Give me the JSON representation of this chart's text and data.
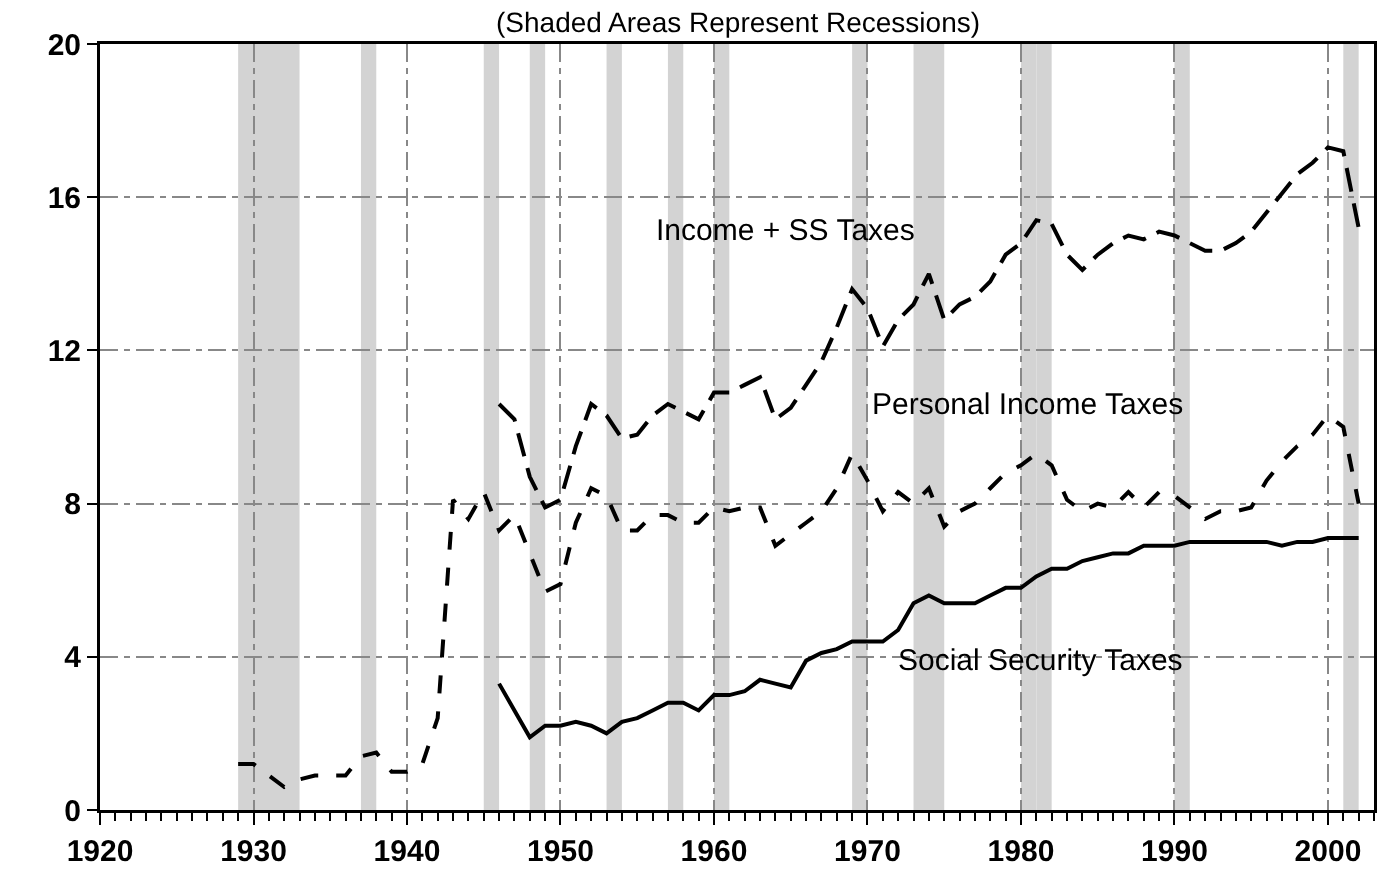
{
  "chart_data": {
    "type": "line",
    "subtitle": "(Shaded Areas Represent Recessions)",
    "xlim": [
      1920,
      2003
    ],
    "xticks": [
      1920,
      1930,
      1940,
      1950,
      1960,
      1970,
      1980,
      1990,
      2000
    ],
    "ylim": [
      0,
      20
    ],
    "yticks": [
      0,
      4,
      8,
      12,
      16,
      20
    ],
    "grid": true,
    "legend": false,
    "marker": "none",
    "series": [
      {
        "name": "Income + SS Taxes",
        "color": "#000000",
        "line_style": "dashed",
        "x": [
          1946,
          1947,
          1948,
          1949,
          1950,
          1951,
          1952,
          1953,
          1954,
          1955,
          1956,
          1957,
          1958,
          1959,
          1960,
          1961,
          1962,
          1963,
          1964,
          1965,
          1966,
          1967,
          1968,
          1969,
          1970,
          1971,
          1972,
          1973,
          1974,
          1975,
          1976,
          1977,
          1978,
          1979,
          1980,
          1981,
          1982,
          1983,
          1984,
          1985,
          1986,
          1987,
          1988,
          1989,
          1990,
          1991,
          1992,
          1993,
          1994,
          1995,
          1996,
          1997,
          1998,
          1999,
          2000,
          2001,
          2002
        ],
        "values": [
          10.6,
          10.2,
          8.7,
          7.9,
          8.1,
          9.5,
          10.6,
          10.3,
          9.7,
          9.8,
          10.3,
          10.6,
          10.4,
          10.2,
          10.9,
          10.9,
          11.1,
          11.3,
          10.2,
          10.5,
          11.1,
          11.7,
          12.6,
          13.6,
          13.1,
          12.1,
          12.8,
          13.2,
          14.0,
          12.8,
          13.2,
          13.4,
          13.8,
          14.5,
          14.8,
          15.4,
          15.3,
          14.5,
          14.1,
          14.5,
          14.8,
          15.0,
          14.9,
          15.1,
          15.0,
          14.8,
          14.6,
          14.6,
          14.8,
          15.1,
          15.6,
          16.1,
          16.6,
          16.9,
          17.3,
          17.2,
          15.2
        ]
      },
      {
        "name": "Personal Income Taxes",
        "color": "#000000",
        "line_style": "dashed",
        "x": [
          1929,
          1930,
          1931,
          1932,
          1933,
          1934,
          1935,
          1936,
          1937,
          1938,
          1939,
          1940,
          1941,
          1942,
          1943,
          1944,
          1945,
          1946,
          1947,
          1948,
          1949,
          1950,
          1951,
          1952,
          1953,
          1954,
          1955,
          1956,
          1957,
          1958,
          1959,
          1960,
          1961,
          1962,
          1963,
          1964,
          1965,
          1966,
          1967,
          1968,
          1969,
          1970,
          1971,
          1972,
          1973,
          1974,
          1975,
          1976,
          1977,
          1978,
          1979,
          1980,
          1981,
          1982,
          1983,
          1984,
          1985,
          1986,
          1987,
          1988,
          1989,
          1990,
          1991,
          1992,
          1993,
          1994,
          1995,
          1996,
          1997,
          1998,
          1999,
          2000,
          2001,
          2002
        ],
        "values": [
          1.2,
          1.2,
          0.9,
          0.6,
          0.8,
          0.9,
          0.9,
          0.9,
          1.4,
          1.5,
          1.0,
          1.0,
          1.2,
          2.4,
          8.1,
          7.6,
          8.3,
          7.3,
          7.7,
          6.7,
          5.7,
          5.9,
          7.5,
          8.4,
          8.2,
          7.3,
          7.3,
          7.7,
          7.7,
          7.5,
          7.5,
          7.9,
          7.8,
          7.9,
          7.9,
          6.9,
          7.2,
          7.5,
          7.8,
          8.4,
          9.3,
          8.6,
          7.8,
          8.3,
          8.0,
          8.4,
          7.4,
          7.8,
          8.0,
          8.4,
          8.8,
          9.0,
          9.3,
          9.0,
          8.1,
          7.8,
          8.0,
          7.9,
          8.3,
          7.9,
          8.3,
          8.2,
          7.9,
          7.6,
          7.8,
          7.8,
          7.9,
          8.6,
          9.1,
          9.5,
          9.8,
          10.3,
          10.0,
          8.0
        ]
      },
      {
        "name": "Social Security Taxes",
        "color": "#000000",
        "line_style": "solid",
        "x": [
          1946,
          1947,
          1948,
          1949,
          1950,
          1951,
          1952,
          1953,
          1954,
          1955,
          1956,
          1957,
          1958,
          1959,
          1960,
          1961,
          1962,
          1963,
          1964,
          1965,
          1966,
          1967,
          1968,
          1969,
          1970,
          1971,
          1972,
          1973,
          1974,
          1975,
          1976,
          1977,
          1978,
          1979,
          1980,
          1981,
          1982,
          1983,
          1984,
          1985,
          1986,
          1987,
          1988,
          1989,
          1990,
          1991,
          1992,
          1993,
          1994,
          1995,
          1996,
          1997,
          1998,
          1999,
          2000,
          2001,
          2002
        ],
        "values": [
          3.3,
          2.6,
          1.9,
          2.2,
          2.2,
          2.3,
          2.2,
          2.0,
          2.3,
          2.4,
          2.6,
          2.8,
          2.8,
          2.6,
          3.0,
          3.0,
          3.1,
          3.4,
          3.3,
          3.2,
          3.9,
          4.1,
          4.2,
          4.4,
          4.4,
          4.4,
          4.7,
          5.4,
          5.6,
          5.4,
          5.4,
          5.4,
          5.6,
          5.8,
          5.8,
          6.1,
          6.3,
          6.3,
          6.5,
          6.6,
          6.7,
          6.7,
          6.9,
          6.9,
          6.9,
          7.0,
          7.0,
          7.0,
          7.0,
          7.0,
          7.0,
          6.9,
          7.0,
          7.0,
          7.1,
          7.1,
          7.1
        ]
      }
    ],
    "bands": [
      {
        "axis": "x",
        "from": 1929,
        "to": 1933,
        "color": "#d3d3d3"
      },
      {
        "axis": "x",
        "from": 1937,
        "to": 1938,
        "color": "#d3d3d3"
      },
      {
        "axis": "x",
        "from": 1945,
        "to": 1946,
        "color": "#d3d3d3"
      },
      {
        "axis": "x",
        "from": 1948,
        "to": 1949,
        "color": "#d3d3d3"
      },
      {
        "axis": "x",
        "from": 1953,
        "to": 1954,
        "color": "#d3d3d3"
      },
      {
        "axis": "x",
        "from": 1957,
        "to": 1958,
        "color": "#d3d3d3"
      },
      {
        "axis": "x",
        "from": 1960,
        "to": 1961,
        "color": "#d3d3d3"
      },
      {
        "axis": "x",
        "from": 1969,
        "to": 1970,
        "color": "#d3d3d3"
      },
      {
        "axis": "x",
        "from": 1973,
        "to": 1975,
        "color": "#d3d3d3"
      },
      {
        "axis": "x",
        "from": 1980,
        "to": 1981,
        "color": "#d3d3d3"
      },
      {
        "axis": "x",
        "from": 1981,
        "to": 1982,
        "color": "#d3d3d3"
      },
      {
        "axis": "x",
        "from": 1990,
        "to": 1991,
        "color": "#d3d3d3"
      },
      {
        "axis": "x",
        "from": 2001,
        "to": 2002,
        "color": "#d3d3d3"
      }
    ]
  }
}
